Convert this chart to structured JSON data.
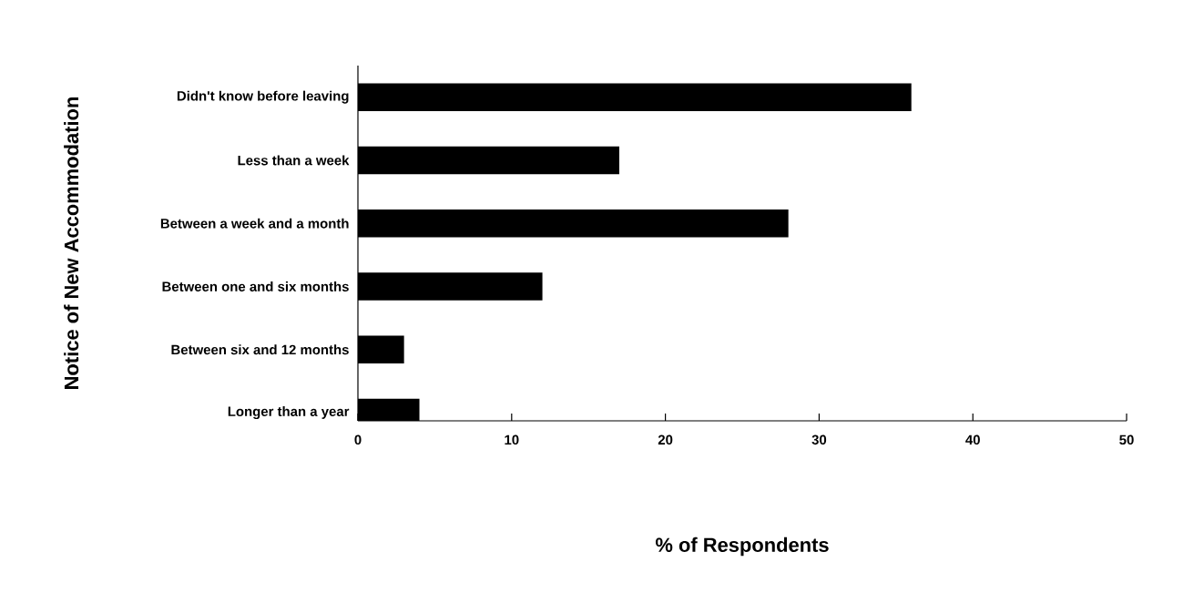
{
  "chart_data": {
    "type": "bar",
    "orientation": "horizontal",
    "xlabel": "% of Respondents",
    "ylabel": "Notice of New Accommodation",
    "categories": [
      "Didn't know before leaving",
      "Less than a week",
      "Between a week and a month",
      "Between one and six months",
      "Between six and 12 months",
      "Longer than a year"
    ],
    "values": [
      36,
      17,
      28,
      12,
      3,
      4
    ],
    "color": "#000000",
    "xlim": [
      0,
      50
    ],
    "xticks": [
      0,
      10,
      20,
      30,
      40,
      50
    ],
    "grid": false
  }
}
